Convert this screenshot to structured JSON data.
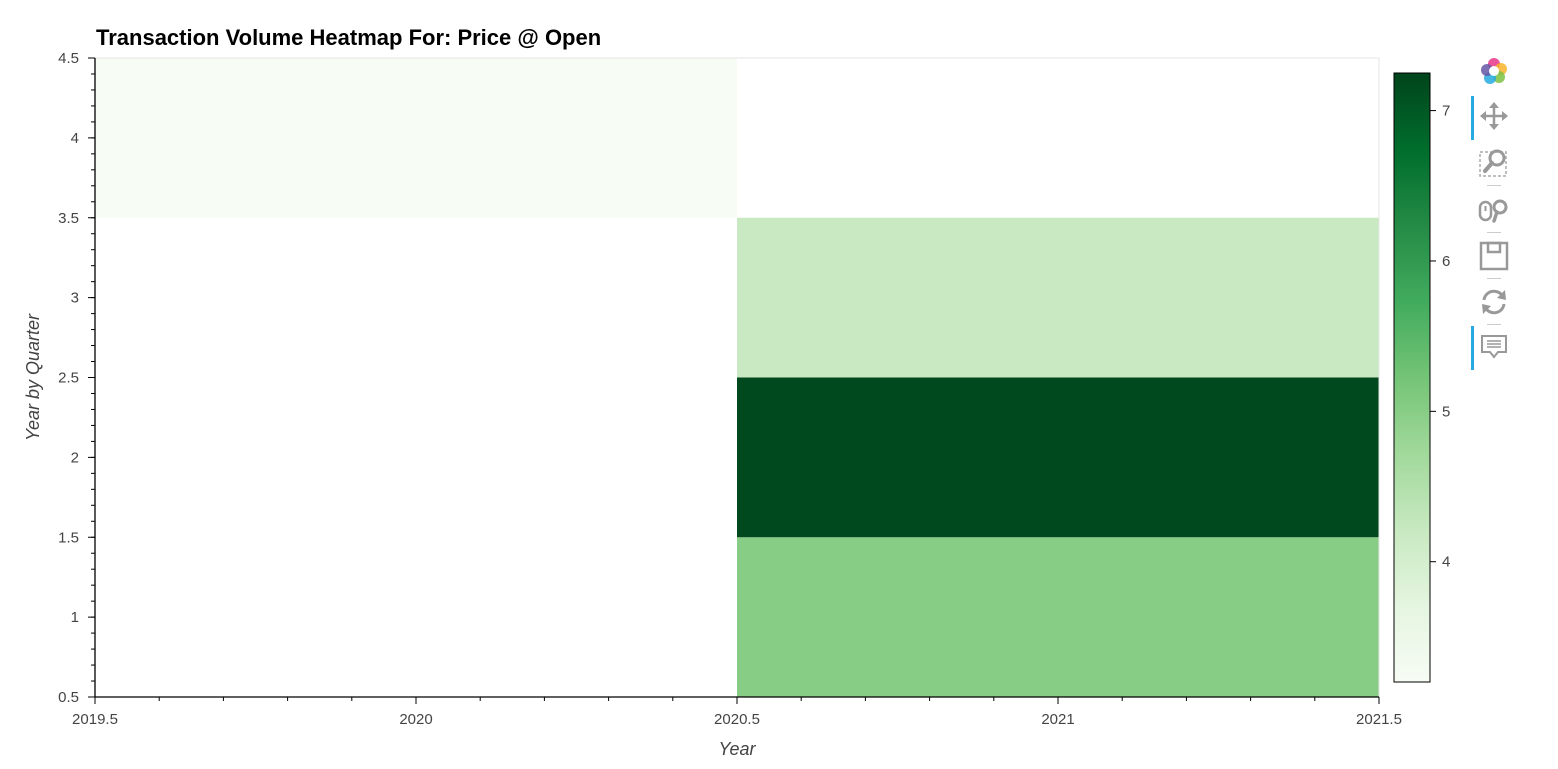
{
  "chart_data": {
    "type": "heatmap",
    "title": "Transaction Volume Heatmap For: Price @ Open",
    "xlabel": "Year",
    "ylabel": "Year by Quarter",
    "xlim": [
      2019.5,
      2021.5
    ],
    "ylim": [
      0.5,
      4.5
    ],
    "x_ticks": [
      {
        "value": 2019.5,
        "label": "2019.5"
      },
      {
        "value": 2020,
        "label": "2020"
      },
      {
        "value": 2020.5,
        "label": "2020.5"
      },
      {
        "value": 2021,
        "label": "2021"
      },
      {
        "value": 2021.5,
        "label": "2021.5"
      }
    ],
    "y_ticks": [
      {
        "value": 0.5,
        "label": "0.5"
      },
      {
        "value": 1,
        "label": "1"
      },
      {
        "value": 1.5,
        "label": "1.5"
      },
      {
        "value": 2,
        "label": "2"
      },
      {
        "value": 2.5,
        "label": "2.5"
      },
      {
        "value": 3,
        "label": "3"
      },
      {
        "value": 3.5,
        "label": "3.5"
      },
      {
        "value": 4,
        "label": "4"
      },
      {
        "value": 4.5,
        "label": "4.5"
      }
    ],
    "cells": [
      {
        "x": 2020,
        "y": 4,
        "value": 3.2
      },
      {
        "x": 2021,
        "y": 1,
        "value": 5.0
      },
      {
        "x": 2021,
        "y": 2,
        "value": 7.2
      },
      {
        "x": 2021,
        "y": 3,
        "value": 4.2
      }
    ],
    "cell_width": 1,
    "cell_height": 1,
    "colorbar": {
      "range": [
        3.2,
        7.25
      ],
      "ticks": [
        {
          "value": 4,
          "label": "4"
        },
        {
          "value": 5,
          "label": "5"
        },
        {
          "value": 6,
          "label": "6"
        },
        {
          "value": 7,
          "label": "7"
        }
      ],
      "colors": [
        "#f7fcf5",
        "#e5f5e0",
        "#c7e9c0",
        "#a1d99b",
        "#74c476",
        "#41ab5d",
        "#238b45",
        "#006d2c",
        "#00441b"
      ]
    }
  },
  "toolbar": {
    "tools": [
      {
        "icon": "bokeh-logo-icon",
        "active": false
      },
      {
        "icon": "pan-icon",
        "active": true
      },
      {
        "icon": "box-zoom-icon",
        "active": false
      },
      {
        "icon": "wheel-zoom-icon",
        "active": false
      },
      {
        "icon": "save-icon",
        "active": false
      },
      {
        "icon": "reset-icon",
        "active": false
      },
      {
        "icon": "hover-icon",
        "active": true
      }
    ]
  }
}
